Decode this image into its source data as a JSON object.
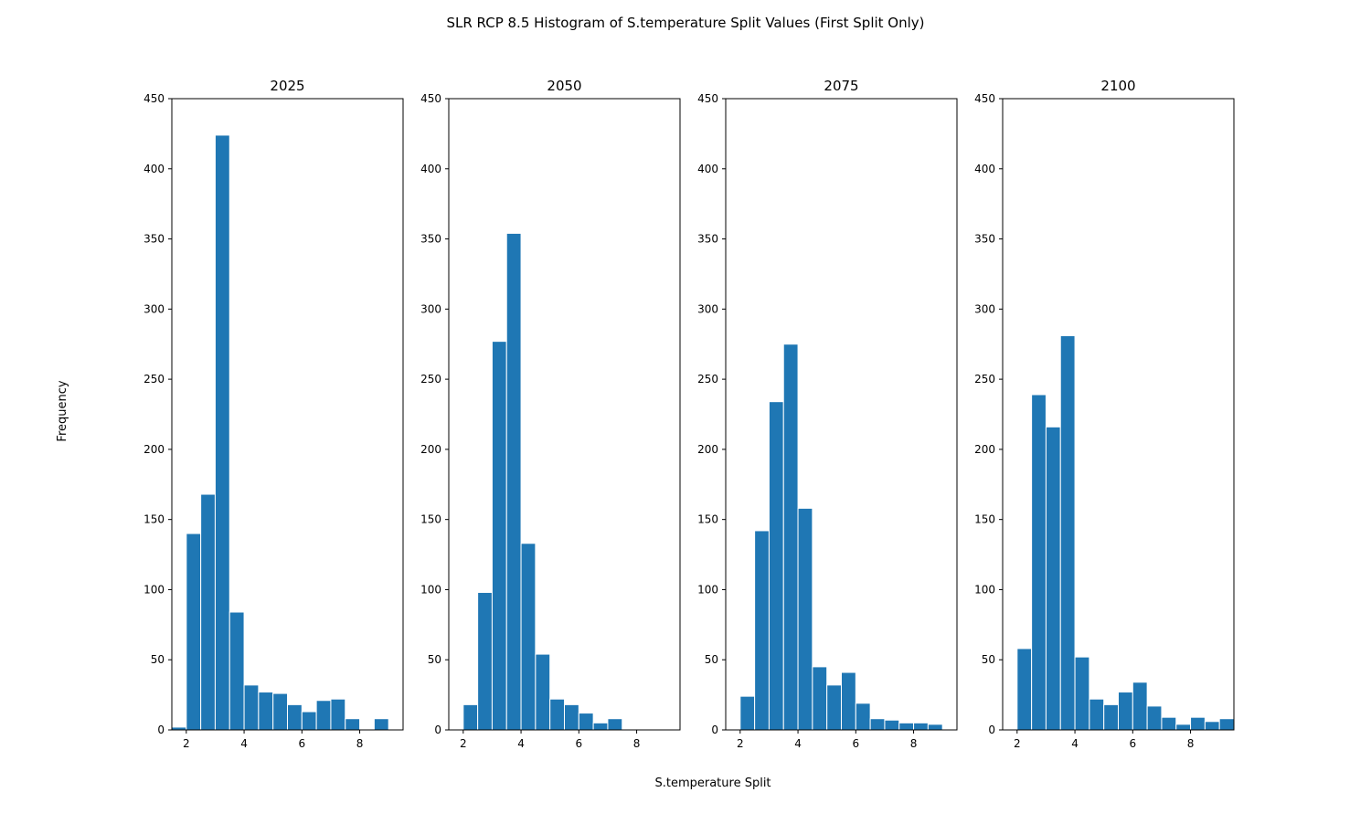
{
  "chart_data": {
    "type": "bar",
    "title": "SLR RCP 8.5 Histogram of S.temperature Split Values (First Split Only)",
    "xlabel": "S.temperature Split",
    "ylabel": "Frequency",
    "bar_color": "#1f77b4",
    "edge_color": "#ffffff",
    "xlim": [
      1.5,
      9.5
    ],
    "ylim": [
      0,
      450
    ],
    "x_ticks": [
      2,
      4,
      6,
      8
    ],
    "y_ticks": [
      0,
      50,
      100,
      150,
      200,
      250,
      300,
      350,
      400,
      450
    ],
    "bin_width": 0.5,
    "panels": [
      {
        "title": "2025",
        "bins": [
          {
            "x": 1.5,
            "count": 2
          },
          {
            "x": 2.0,
            "count": 140
          },
          {
            "x": 2.5,
            "count": 168
          },
          {
            "x": 3.0,
            "count": 424
          },
          {
            "x": 3.5,
            "count": 84
          },
          {
            "x": 4.0,
            "count": 32
          },
          {
            "x": 4.5,
            "count": 27
          },
          {
            "x": 5.0,
            "count": 26
          },
          {
            "x": 5.5,
            "count": 18
          },
          {
            "x": 6.0,
            "count": 13
          },
          {
            "x": 6.5,
            "count": 21
          },
          {
            "x": 7.0,
            "count": 22
          },
          {
            "x": 7.5,
            "count": 8
          },
          {
            "x": 8.0,
            "count": 0
          },
          {
            "x": 8.5,
            "count": 8
          }
        ]
      },
      {
        "title": "2050",
        "bins": [
          {
            "x": 2.0,
            "count": 18
          },
          {
            "x": 2.5,
            "count": 98
          },
          {
            "x": 3.0,
            "count": 277
          },
          {
            "x": 3.5,
            "count": 354
          },
          {
            "x": 4.0,
            "count": 133
          },
          {
            "x": 4.5,
            "count": 54
          },
          {
            "x": 5.0,
            "count": 22
          },
          {
            "x": 5.5,
            "count": 18
          },
          {
            "x": 6.0,
            "count": 12
          },
          {
            "x": 6.5,
            "count": 5
          },
          {
            "x": 7.0,
            "count": 8
          }
        ]
      },
      {
        "title": "2075",
        "bins": [
          {
            "x": 2.0,
            "count": 24
          },
          {
            "x": 2.5,
            "count": 142
          },
          {
            "x": 3.0,
            "count": 234
          },
          {
            "x": 3.5,
            "count": 275
          },
          {
            "x": 4.0,
            "count": 158
          },
          {
            "x": 4.5,
            "count": 45
          },
          {
            "x": 5.0,
            "count": 32
          },
          {
            "x": 5.5,
            "count": 41
          },
          {
            "x": 6.0,
            "count": 19
          },
          {
            "x": 6.5,
            "count": 8
          },
          {
            "x": 7.0,
            "count": 7
          },
          {
            "x": 7.5,
            "count": 5
          },
          {
            "x": 8.0,
            "count": 5
          },
          {
            "x": 8.5,
            "count": 4
          }
        ]
      },
      {
        "title": "2100",
        "bins": [
          {
            "x": 2.0,
            "count": 58
          },
          {
            "x": 2.5,
            "count": 239
          },
          {
            "x": 3.0,
            "count": 216
          },
          {
            "x": 3.5,
            "count": 281
          },
          {
            "x": 4.0,
            "count": 52
          },
          {
            "x": 4.5,
            "count": 22
          },
          {
            "x": 5.0,
            "count": 18
          },
          {
            "x": 5.5,
            "count": 27
          },
          {
            "x": 6.0,
            "count": 34
          },
          {
            "x": 6.5,
            "count": 17
          },
          {
            "x": 7.0,
            "count": 9
          },
          {
            "x": 7.5,
            "count": 4
          },
          {
            "x": 8.0,
            "count": 9
          },
          {
            "x": 8.5,
            "count": 6
          },
          {
            "x": 9.0,
            "count": 8
          }
        ]
      }
    ]
  }
}
